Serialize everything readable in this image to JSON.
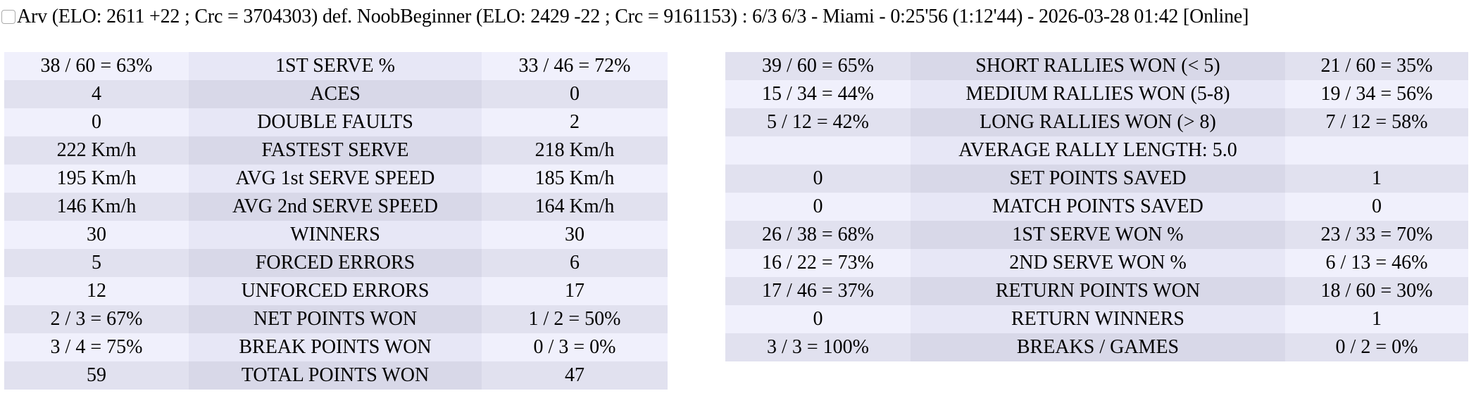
{
  "title": "Arv (ELO: 2611 +22 ; Crc = 3704303) def. NoobBeginner (ELO: 2429 -22 ; Crc = 9161153) : 6/3 6/3 - Miami - 0:25'56 (1:12'44) - 2026-03-28 01:42 [Online]",
  "left_table": [
    {
      "p1": "38 / 60 = 63%",
      "label": "1ST SERVE %",
      "p2": "33 / 46 = 72%"
    },
    {
      "p1": "4",
      "label": "ACES",
      "p2": "0"
    },
    {
      "p1": "0",
      "label": "DOUBLE FAULTS",
      "p2": "2"
    },
    {
      "p1": "222 Km/h",
      "label": "FASTEST SERVE",
      "p2": "218 Km/h"
    },
    {
      "p1": "195 Km/h",
      "label": "AVG 1st SERVE SPEED",
      "p2": "185 Km/h"
    },
    {
      "p1": "146 Km/h",
      "label": "AVG 2nd SERVE SPEED",
      "p2": "164 Km/h"
    },
    {
      "p1": "30",
      "label": "WINNERS",
      "p2": "30"
    },
    {
      "p1": "5",
      "label": "FORCED ERRORS",
      "p2": "6"
    },
    {
      "p1": "12",
      "label": "UNFORCED ERRORS",
      "p2": "17"
    },
    {
      "p1": "2 / 3 = 67%",
      "label": "NET POINTS WON",
      "p2": "1 / 2 = 50%"
    },
    {
      "p1": "3 / 4 = 75%",
      "label": "BREAK POINTS WON",
      "p2": "0 / 3 = 0%"
    },
    {
      "p1": "59",
      "label": "TOTAL POINTS WON",
      "p2": "47"
    }
  ],
  "right_table": [
    {
      "p1": "39 / 60 = 65%",
      "label": "SHORT RALLIES WON (< 5)",
      "p2": "21 / 60 = 35%"
    },
    {
      "p1": "15 / 34 = 44%",
      "label": "MEDIUM RALLIES WON (5-8)",
      "p2": "19 / 34 = 56%"
    },
    {
      "p1": "5 / 12 = 42%",
      "label": "LONG RALLIES WON (> 8)",
      "p2": "7 / 12 = 58%"
    },
    {
      "p1": "",
      "label": "AVERAGE RALLY LENGTH: 5.0",
      "p2": ""
    },
    {
      "p1": "0",
      "label": "SET POINTS SAVED",
      "p2": "1"
    },
    {
      "p1": "0",
      "label": "MATCH POINTS SAVED",
      "p2": "0"
    },
    {
      "p1": "26 / 38 = 68%",
      "label": "1ST SERVE WON %",
      "p2": "23 / 33 = 70%"
    },
    {
      "p1": "16 / 22 = 73%",
      "label": "2ND SERVE WON %",
      "p2": "6 / 13 = 46%"
    },
    {
      "p1": "17 / 46 = 37%",
      "label": "RETURN POINTS WON",
      "p2": "18 / 60 = 30%"
    },
    {
      "p1": "0",
      "label": "RETURN WINNERS",
      "p2": "1"
    },
    {
      "p1": "3 / 3 = 100%",
      "label": "BREAKS / GAMES",
      "p2": "0 / 2 = 0%"
    }
  ]
}
